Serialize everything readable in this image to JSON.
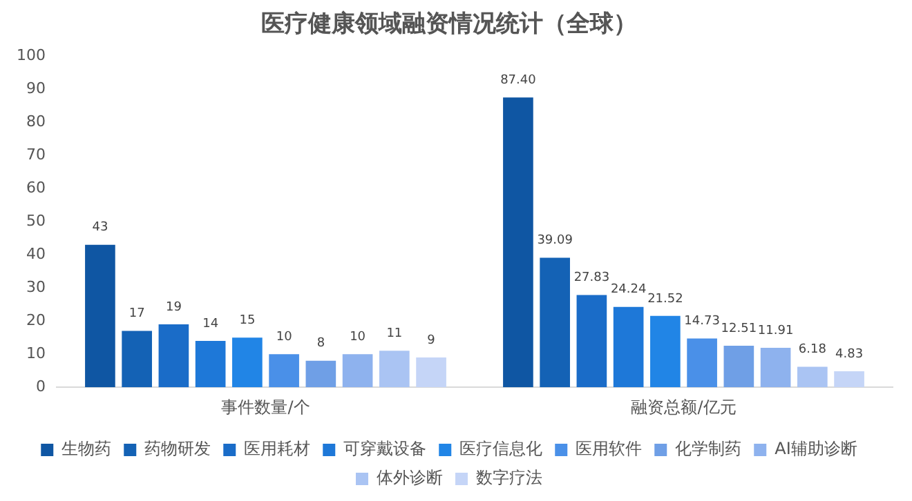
{
  "chart_data": {
    "type": "bar",
    "title": "医疗健康领域融资情况统计（全球）",
    "categories": [
      "事件数量/个",
      "融资总额/亿元"
    ],
    "series": [
      {
        "name": "生物药",
        "color": "#0f56a3",
        "values": [
          43,
          87.4
        ],
        "value_labels": [
          "43",
          "87.40"
        ]
      },
      {
        "name": "药物研发",
        "color": "#1462b5",
        "values": [
          17,
          39.09
        ],
        "value_labels": [
          "17",
          "39.09"
        ]
      },
      {
        "name": "医用耗材",
        "color": "#1a6cc8",
        "values": [
          19,
          27.83
        ],
        "value_labels": [
          "19",
          "27.83"
        ]
      },
      {
        "name": "可穿戴设备",
        "color": "#1e78d8",
        "values": [
          14,
          24.24
        ],
        "value_labels": [
          "14",
          "24.24"
        ]
      },
      {
        "name": "医疗信息化",
        "color": "#2185e6",
        "values": [
          15,
          21.52
        ],
        "value_labels": [
          "15",
          "21.52"
        ]
      },
      {
        "name": "医用软件",
        "color": "#4a90e8",
        "values": [
          10,
          14.73
        ],
        "value_labels": [
          "10",
          "14.73"
        ]
      },
      {
        "name": "化学制药",
        "color": "#6f9fe6",
        "values": [
          8,
          12.51
        ],
        "value_labels": [
          "8",
          "12.51"
        ]
      },
      {
        "name": "AI辅助诊断",
        "color": "#8eb2ee",
        "values": [
          10,
          11.91
        ],
        "value_labels": [
          "10",
          "11.91"
        ]
      },
      {
        "name": "体外诊断",
        "color": "#aac4f3",
        "values": [
          11,
          6.18
        ],
        "value_labels": [
          "11",
          "6.18"
        ]
      },
      {
        "name": "数字疗法",
        "color": "#c5d5f7",
        "values": [
          9,
          4.83
        ],
        "value_labels": [
          "9",
          "4.83"
        ]
      }
    ],
    "ylim": [
      0,
      100
    ],
    "yticks": [
      0,
      10,
      20,
      30,
      40,
      50,
      60,
      70,
      80,
      90,
      100
    ],
    "grid": false,
    "legend": "bottom"
  }
}
